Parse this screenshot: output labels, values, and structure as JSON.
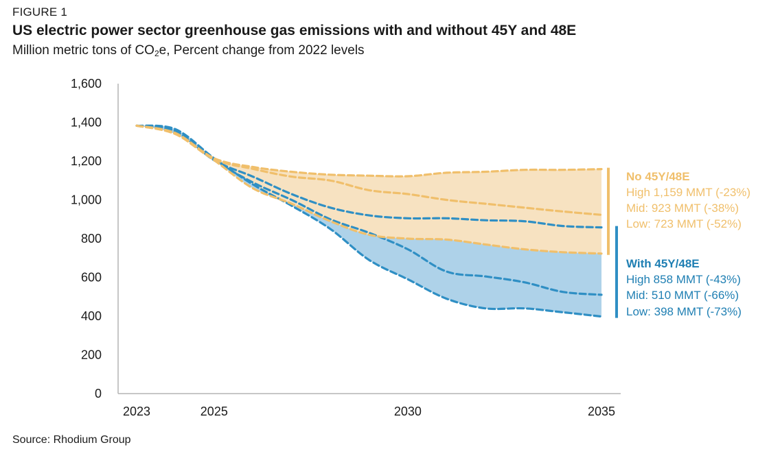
{
  "figure_label": "FIGURE 1",
  "subtitle_main": "Million metric tons of CO",
  "subtitle_sub": "2",
  "subtitle_rest": "e, Percent change from 2022 levels",
  "source": "Source: Rhodium Group",
  "colors": {
    "no_credit": "#f0bf6b",
    "no_credit_fill": "#f7e2c1",
    "with_credit": "#2f8fc4",
    "with_credit_fill": "#aed2e9",
    "with_credit_text": "#1f7fb3",
    "axis": "#b3b3b3"
  },
  "annotations": {
    "no_credit": {
      "head": "No 45Y/48E",
      "lines": [
        "High 1,159 MMT (-23%)",
        "Mid: 923 MMT (-38%)",
        "Low: 723 MMT (-52%)"
      ]
    },
    "with_credit": {
      "head": "With 45Y/48E",
      "lines": [
        "High 858 MMT (-43%)",
        "Mid: 510 MMT (-66%)",
        "Low: 398 MMT (-73%)"
      ]
    }
  },
  "chart_data": {
    "type": "line",
    "title": "US electric power sector greenhouse gas emissions with and without 45Y and 48E",
    "ylabel": "Million metric tons of CO2e, Percent change from 2022 levels",
    "xlim": [
      2023,
      2035
    ],
    "ylim": [
      0,
      1600
    ],
    "y_ticks": [
      0,
      200,
      400,
      600,
      800,
      1000,
      1200,
      1400,
      1600
    ],
    "x_ticks": [
      2023,
      2025,
      2030,
      2035
    ],
    "grid": false,
    "x": [
      2023,
      2024,
      2025,
      2026,
      2027,
      2028,
      2029,
      2030,
      2031,
      2032,
      2033,
      2034,
      2035
    ],
    "series": [
      {
        "name": "No 45Y/48E High",
        "group": "no_credit",
        "values": [
          1383,
          1345,
          1215,
          1170,
          1145,
          1130,
          1125,
          1122,
          1140,
          1145,
          1155,
          1155,
          1159
        ]
      },
      {
        "name": "No 45Y/48E Mid",
        "group": "no_credit",
        "values": [
          1383,
          1340,
          1210,
          1160,
          1120,
          1100,
          1050,
          1030,
          1000,
          980,
          960,
          940,
          923
        ]
      },
      {
        "name": "No 45Y/48E Low",
        "group": "no_credit",
        "values": [
          1383,
          1340,
          1205,
          1060,
          980,
          890,
          820,
          800,
          795,
          770,
          745,
          730,
          723
        ]
      },
      {
        "name": "With 45Y/48E High",
        "group": "with_credit",
        "values": [
          1383,
          1355,
          1205,
          1120,
          1030,
          960,
          920,
          905,
          905,
          895,
          890,
          865,
          858
        ]
      },
      {
        "name": "With 45Y/48E Mid",
        "group": "with_credit",
        "values": [
          1383,
          1345,
          1205,
          1090,
          1000,
          900,
          830,
          745,
          630,
          605,
          575,
          525,
          510
        ]
      },
      {
        "name": "With 45Y/48E Low",
        "group": "with_credit",
        "values": [
          1383,
          1365,
          1215,
          1080,
          970,
          850,
          690,
          590,
          490,
          440,
          440,
          420,
          398
        ]
      }
    ],
    "bands": [
      {
        "group": "no_credit",
        "upper": "No 45Y/48E High",
        "lower": "No 45Y/48E Low"
      },
      {
        "group": "with_credit",
        "upper": "No 45Y/48E Low",
        "lower": "With 45Y/48E Low"
      }
    ]
  }
}
